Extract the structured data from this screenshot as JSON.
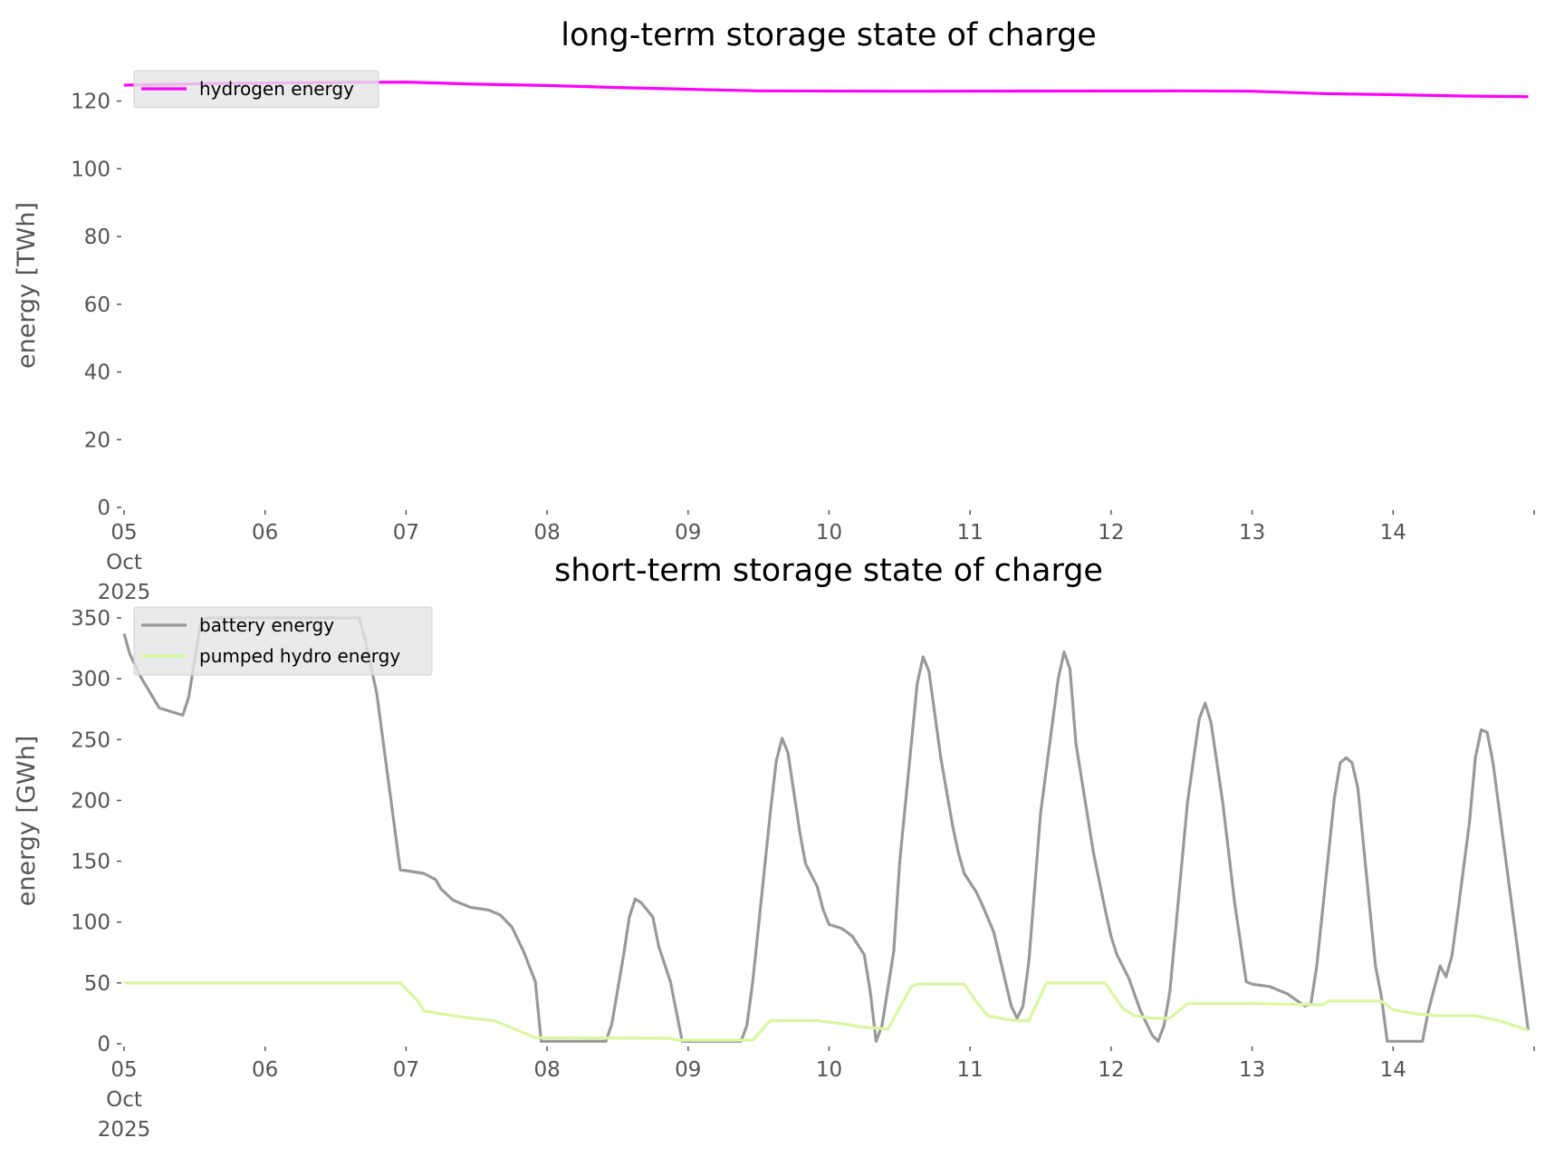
{
  "chart_data": [
    {
      "type": "line",
      "title": "long-term storage state of charge",
      "ylabel": "energy [TWh]",
      "xlabel": "",
      "xlim": [
        "2025-10-05T00:00",
        "2025-10-15T00:00"
      ],
      "ylim": [
        0,
        130
      ],
      "yticks": [
        0,
        20,
        40,
        60,
        80,
        100,
        120
      ],
      "xticks": [
        "05\nOct\n2025",
        "06",
        "07",
        "08",
        "09",
        "10",
        "11",
        "12",
        "13",
        "14"
      ],
      "grid": false,
      "legend": "top-left",
      "series": [
        {
          "name": "hydrogen energy",
          "color": "#ff00ff",
          "points": [
            [
              "2025-10-05T00:00",
              124.7
            ],
            [
              "2025-10-05T12:00",
              125.1
            ],
            [
              "2025-10-06T12:00",
              125.5
            ],
            [
              "2025-10-07T00:00",
              125.6
            ],
            [
              "2025-10-07T12:00",
              125.0
            ],
            [
              "2025-10-08T00:00",
              124.6
            ],
            [
              "2025-10-08T12:00",
              124.0
            ],
            [
              "2025-10-09T00:00",
              123.5
            ],
            [
              "2025-10-09T12:00",
              123.0
            ],
            [
              "2025-10-10T12:00",
              122.9
            ],
            [
              "2025-10-12T12:00",
              123.0
            ],
            [
              "2025-10-13T00:00",
              122.9
            ],
            [
              "2025-10-13T12:00",
              122.2
            ],
            [
              "2025-10-14T00:00",
              121.9
            ],
            [
              "2025-10-14T12:00",
              121.5
            ],
            [
              "2025-10-14T23:00",
              121.3
            ]
          ]
        }
      ]
    },
    {
      "type": "line",
      "title": "short-term storage state of charge",
      "ylabel": "energy [GWh]",
      "xlabel": "",
      "xlim": [
        "2025-10-05T00:00",
        "2025-10-15T00:00"
      ],
      "ylim": [
        0,
        360
      ],
      "yticks": [
        0,
        50,
        100,
        150,
        200,
        250,
        300,
        350
      ],
      "xticks": [
        "05\nOct\n2025",
        "06",
        "07",
        "08",
        "09",
        "10",
        "11",
        "12",
        "13",
        "14"
      ],
      "grid": false,
      "legend": "top-left",
      "series": [
        {
          "name": "battery energy",
          "color": "#999999",
          "points": [
            [
              "2025-10-05T00:00",
              337
            ],
            [
              "2025-10-05T01:00",
              320
            ],
            [
              "2025-10-05T03:00",
              300
            ],
            [
              "2025-10-05T06:00",
              276
            ],
            [
              "2025-10-05T10:00",
              270
            ],
            [
              "2025-10-05T11:00",
              285
            ],
            [
              "2025-10-05T13:00",
              345
            ],
            [
              "2025-10-05T14:00",
              350
            ],
            [
              "2025-10-06T16:00",
              350
            ],
            [
              "2025-10-06T17:00",
              333
            ],
            [
              "2025-10-06T19:00",
              288
            ],
            [
              "2025-10-06T23:00",
              143
            ],
            [
              "2025-10-07T03:00",
              140
            ],
            [
              "2025-10-07T05:00",
              135
            ],
            [
              "2025-10-07T06:00",
              127
            ],
            [
              "2025-10-07T08:00",
              118
            ],
            [
              "2025-10-07T11:00",
              112
            ],
            [
              "2025-10-07T14:00",
              110
            ],
            [
              "2025-10-07T16:00",
              106
            ],
            [
              "2025-10-07T18:00",
              96
            ],
            [
              "2025-10-07T20:00",
              76
            ],
            [
              "2025-10-07T22:00",
              51
            ],
            [
              "2025-10-07T23:00",
              2
            ],
            [
              "2025-10-08T10:00",
              2
            ],
            [
              "2025-10-08T11:00",
              16
            ],
            [
              "2025-10-08T13:00",
              72
            ],
            [
              "2025-10-08T14:00",
              104
            ],
            [
              "2025-10-08T15:00",
              119
            ],
            [
              "2025-10-08T16:00",
              116
            ],
            [
              "2025-10-08T18:00",
              104
            ],
            [
              "2025-10-08T19:00",
              80
            ],
            [
              "2025-10-08T21:00",
              51
            ],
            [
              "2025-10-08T23:00",
              2
            ],
            [
              "2025-10-09T09:00",
              2
            ],
            [
              "2025-10-09T10:00",
              15
            ],
            [
              "2025-10-09T11:00",
              51
            ],
            [
              "2025-10-09T14:00",
              190
            ],
            [
              "2025-10-09T15:00",
              232
            ],
            [
              "2025-10-09T16:00",
              251
            ],
            [
              "2025-10-09T17:00",
              239
            ],
            [
              "2025-10-09T19:00",
              174
            ],
            [
              "2025-10-09T20:00",
              148
            ],
            [
              "2025-10-09T22:00",
              129
            ],
            [
              "2025-10-09T23:00",
              110
            ],
            [
              "2025-10-10T00:00",
              98
            ],
            [
              "2025-10-10T02:00",
              95
            ],
            [
              "2025-10-10T03:00",
              92
            ],
            [
              "2025-10-10T04:00",
              88
            ],
            [
              "2025-10-10T06:00",
              73
            ],
            [
              "2025-10-10T07:00",
              43
            ],
            [
              "2025-10-10T08:00",
              2
            ],
            [
              "2025-10-10T09:00",
              15
            ],
            [
              "2025-10-10T11:00",
              76
            ],
            [
              "2025-10-10T12:00",
              149
            ],
            [
              "2025-10-10T15:00",
              296
            ],
            [
              "2025-10-10T16:00",
              318
            ],
            [
              "2025-10-10T17:00",
              306
            ],
            [
              "2025-10-10T19:00",
              235
            ],
            [
              "2025-10-10T21:00",
              180
            ],
            [
              "2025-10-10T22:00",
              157
            ],
            [
              "2025-10-10T23:00",
              140
            ],
            [
              "2025-10-11T01:00",
              125
            ],
            [
              "2025-10-11T02:00",
              115
            ],
            [
              "2025-10-11T04:00",
              92
            ],
            [
              "2025-10-11T05:00",
              72
            ],
            [
              "2025-10-11T07:00",
              31
            ],
            [
              "2025-10-11T08:00",
              21
            ],
            [
              "2025-10-11T09:00",
              31
            ],
            [
              "2025-10-11T10:00",
              68
            ],
            [
              "2025-10-11T12:00",
              190
            ],
            [
              "2025-10-11T15:00",
              300
            ],
            [
              "2025-10-11T16:00",
              322
            ],
            [
              "2025-10-11T17:00",
              308
            ],
            [
              "2025-10-11T18:00",
              247
            ],
            [
              "2025-10-11T21:00",
              157
            ],
            [
              "2025-10-11T23:00",
              110
            ],
            [
              "2025-10-12T00:00",
              88
            ],
            [
              "2025-10-12T01:00",
              73
            ],
            [
              "2025-10-12T03:00",
              54
            ],
            [
              "2025-10-12T05:00",
              27
            ],
            [
              "2025-10-12T07:00",
              7
            ],
            [
              "2025-10-12T08:00",
              2
            ],
            [
              "2025-10-12T09:00",
              15
            ],
            [
              "2025-10-12T10:00",
              43
            ],
            [
              "2025-10-12T13:00",
              198
            ],
            [
              "2025-10-12T15:00",
              267
            ],
            [
              "2025-10-12T16:00",
              280
            ],
            [
              "2025-10-12T17:00",
              264
            ],
            [
              "2025-10-12T19:00",
              198
            ],
            [
              "2025-10-12T21:00",
              117
            ],
            [
              "2025-10-12T23:00",
              51
            ],
            [
              "2025-10-13T00:00",
              49
            ],
            [
              "2025-10-13T03:00",
              47
            ],
            [
              "2025-10-13T06:00",
              41
            ],
            [
              "2025-10-13T09:00",
              31
            ],
            [
              "2025-10-13T10:00",
              33
            ],
            [
              "2025-10-13T11:00",
              64
            ],
            [
              "2025-10-13T14:00",
              202
            ],
            [
              "2025-10-13T15:00",
              231
            ],
            [
              "2025-10-13T16:00",
              235
            ],
            [
              "2025-10-13T17:00",
              231
            ],
            [
              "2025-10-13T18:00",
              210
            ],
            [
              "2025-10-13T21:00",
              64
            ],
            [
              "2025-10-13T22:00",
              39
            ],
            [
              "2025-10-13T23:00",
              2
            ],
            [
              "2025-10-14T05:00",
              2
            ],
            [
              "2025-10-14T06:00",
              27
            ],
            [
              "2025-10-14T08:00",
              64
            ],
            [
              "2025-10-14T09:00",
              55
            ],
            [
              "2025-10-14T10:00",
              72
            ],
            [
              "2025-10-14T11:00",
              108
            ],
            [
              "2025-10-14T13:00",
              182
            ],
            [
              "2025-10-14T14:00",
              235
            ],
            [
              "2025-10-14T15:00",
              258
            ],
            [
              "2025-10-14T16:00",
              256
            ],
            [
              "2025-10-14T17:00",
              231
            ],
            [
              "2025-10-14T23:00",
              11
            ]
          ]
        },
        {
          "name": "pumped hydro energy",
          "color": "#d9f7a0",
          "points": [
            [
              "2025-10-05T00:00",
              50
            ],
            [
              "2025-10-06T23:00",
              50
            ],
            [
              "2025-10-07T02:00",
              35
            ],
            [
              "2025-10-07T03:00",
              27
            ],
            [
              "2025-10-07T06:00",
              24.5
            ],
            [
              "2025-10-07T11:00",
              21
            ],
            [
              "2025-10-07T15:00",
              19
            ],
            [
              "2025-10-07T18:00",
              13
            ],
            [
              "2025-10-07T22:00",
              5
            ],
            [
              "2025-10-08T21:00",
              4.5
            ],
            [
              "2025-10-08T22:00",
              3
            ],
            [
              "2025-10-09T11:00",
              3
            ],
            [
              "2025-10-09T14:00",
              19
            ],
            [
              "2025-10-09T22:00",
              19
            ],
            [
              "2025-10-10T03:00",
              16
            ],
            [
              "2025-10-10T05:00",
              14
            ],
            [
              "2025-10-10T10:00",
              12
            ],
            [
              "2025-10-10T14:00",
              47
            ],
            [
              "2025-10-10T15:00",
              49
            ],
            [
              "2025-10-10T23:00",
              49
            ],
            [
              "2025-10-11T01:00",
              35
            ],
            [
              "2025-10-11T03:00",
              23
            ],
            [
              "2025-10-11T06:00",
              20
            ],
            [
              "2025-10-11T08:00",
              19
            ],
            [
              "2025-10-11T10:00",
              19
            ],
            [
              "2025-10-11T13:00",
              50
            ],
            [
              "2025-10-11T23:00",
              50
            ],
            [
              "2025-10-12T02:00",
              29
            ],
            [
              "2025-10-12T04:00",
              23
            ],
            [
              "2025-10-12T07:00",
              21
            ],
            [
              "2025-10-12T10:00",
              21
            ],
            [
              "2025-10-12T13:00",
              33
            ],
            [
              "2025-10-13T00:00",
              33
            ],
            [
              "2025-10-13T12:00",
              32
            ],
            [
              "2025-10-13T13:00",
              35
            ],
            [
              "2025-10-13T22:00",
              35
            ],
            [
              "2025-10-14T00:00",
              28
            ],
            [
              "2025-10-14T04:00",
              24.5
            ],
            [
              "2025-10-14T08:00",
              23
            ],
            [
              "2025-10-14T14:00",
              23
            ],
            [
              "2025-10-14T18:00",
              19
            ],
            [
              "2025-10-14T23:00",
              11
            ]
          ]
        }
      ]
    }
  ]
}
